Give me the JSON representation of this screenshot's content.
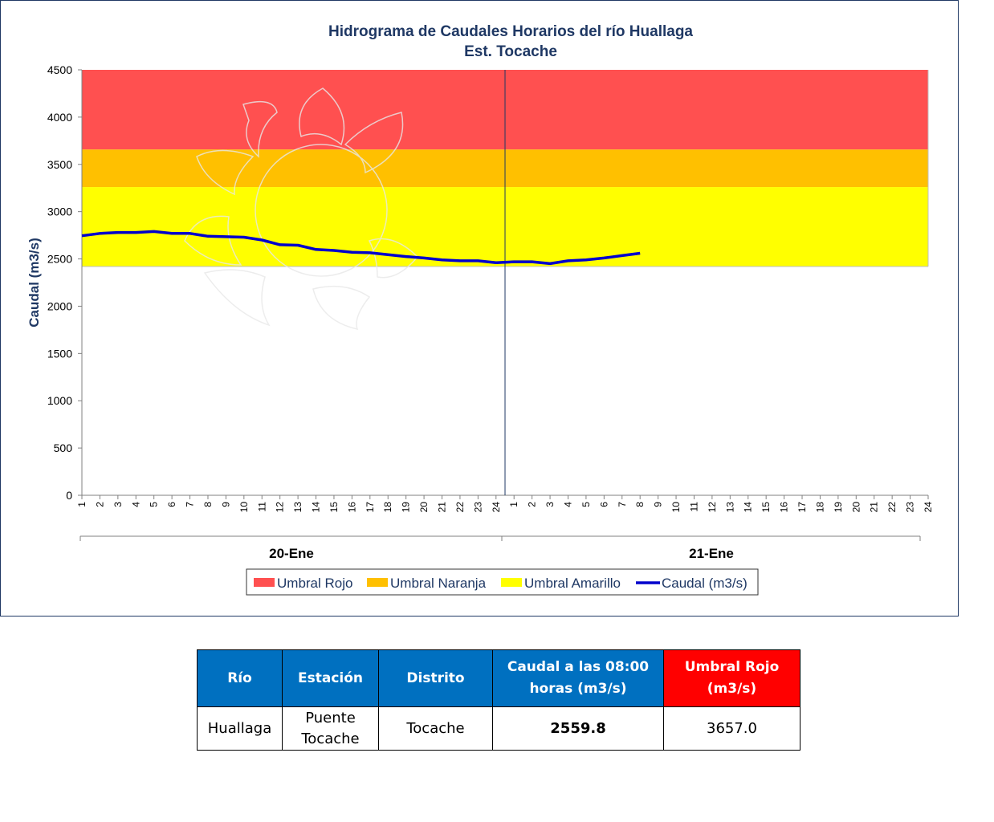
{
  "chart_data": {
    "type": "line",
    "title": "Hidrograma  de Caudales Horarios  del río Huallaga",
    "subtitle": "Est. Tocache",
    "ylabel": "Caudal (m3/s)",
    "xlabel": "",
    "ylim": [
      0,
      4500
    ],
    "y_ticks": [
      "0",
      "500",
      "1000",
      "1500",
      "2000",
      "2500",
      "3000",
      "3500",
      "4000",
      "4500"
    ],
    "x_ticks": [
      "1",
      "2",
      "3",
      "4",
      "5",
      "6",
      "7",
      "8",
      "9",
      "10",
      "11",
      "12",
      "13",
      "14",
      "15",
      "16",
      "17",
      "18",
      "19",
      "20",
      "21",
      "22",
      "23",
      "24"
    ],
    "groups": [
      "20-Ene",
      "21-Ene"
    ],
    "grid": false,
    "legend_position": "bottom",
    "thresholds": [
      {
        "name": "Umbral Rojo",
        "from": 3657,
        "to": 4500,
        "color": "#ff5050"
      },
      {
        "name": "Umbral Naranja",
        "from": 3260,
        "to": 3657,
        "color": "#ffc000"
      },
      {
        "name": "Umbral Amarillo",
        "from": 2420,
        "to": 3260,
        "color": "#ffff00"
      }
    ],
    "series": [
      {
        "name": "Caudal (m3/s)",
        "color": "#0000cc",
        "values": [
          2745,
          2770,
          2780,
          2780,
          2790,
          2770,
          2770,
          2740,
          2735,
          2730,
          2700,
          2650,
          2645,
          2600,
          2590,
          2570,
          2565,
          2545,
          2525,
          2510,
          2490,
          2480,
          2480,
          2460,
          2470,
          2470,
          2450,
          2480,
          2490,
          2510,
          2535,
          2560
        ]
      }
    ]
  },
  "table": {
    "headers": {
      "rio": "Río",
      "estacion": "Estación",
      "distrito": "Distrito",
      "caudal_line1": "Caudal a las  08:00",
      "caudal_line2": "horas (m3/s)",
      "umbral_line1": "Umbral Rojo",
      "umbral_line2": "(m3/s)"
    },
    "row": {
      "rio": "Huallaga",
      "estacion_line1": "Puente",
      "estacion_line2": "Tocache",
      "distrito": "Tocache",
      "caudal": "2559.8",
      "umbral": "3657.0"
    }
  }
}
